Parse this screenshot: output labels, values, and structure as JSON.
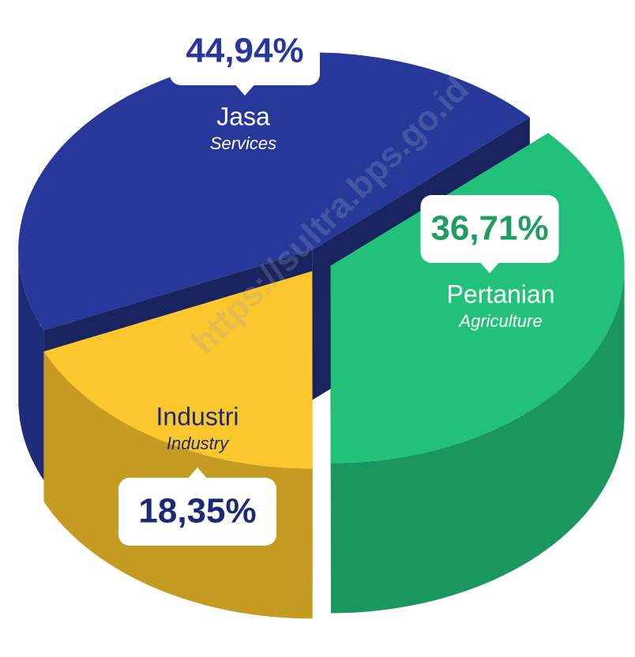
{
  "chart_data": {
    "type": "pie",
    "categories": [
      "Jasa",
      "Pertanian",
      "Industri"
    ],
    "categories_en": [
      "Services",
      "Agriculture",
      "Industry"
    ],
    "values": [
      44.94,
      36.71,
      18.35
    ],
    "value_labels": [
      "44,94%",
      "36,71%",
      "18,35%"
    ],
    "colors": [
      "#27389a",
      "#21c17a",
      "#fcc72c"
    ]
  },
  "watermark": "https://sultra.bps.go.id"
}
